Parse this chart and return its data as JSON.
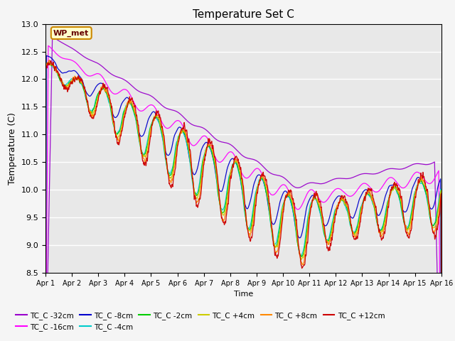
{
  "title": "Temperature Set C",
  "xlabel": "Time",
  "ylabel": "Temperature (C)",
  "ylim": [
    8.5,
    13.0
  ],
  "yticks": [
    8.5,
    9.0,
    9.5,
    10.0,
    10.5,
    11.0,
    11.5,
    12.0,
    12.5,
    13.0
  ],
  "xtick_labels": [
    "Apr 1",
    "Apr 2",
    "Apr 3",
    "Apr 4",
    "Apr 5",
    "Apr 6",
    "Apr 7",
    "Apr 8",
    "Apr 9",
    "Apr 10",
    "Apr 11",
    "Apr 12",
    "Apr 13",
    "Apr 14",
    "Apr 15",
    "Apr 16"
  ],
  "series": [
    {
      "label": "TC_C -32cm",
      "color": "#9900cc"
    },
    {
      "label": "TC_C -16cm",
      "color": "#ff00ff"
    },
    {
      "label": "TC_C -8cm",
      "color": "#0000cc"
    },
    {
      "label": "TC_C -4cm",
      "color": "#00cccc"
    },
    {
      "label": "TC_C -2cm",
      "color": "#00cc00"
    },
    {
      "label": "TC_C +4cm",
      "color": "#cccc00"
    },
    {
      "label": "TC_C +8cm",
      "color": "#ff8800"
    },
    {
      "label": "TC_C +12cm",
      "color": "#cc0000"
    }
  ],
  "wp_met_box_color": "#ffffcc",
  "wp_met_text_color": "#660000",
  "wp_met_border_color": "#cc8800",
  "bg_color": "#f5f5f5",
  "plot_bg": "#e8e8e8",
  "legend_cols": 6,
  "n_days": 15,
  "pts_per_day": 288
}
